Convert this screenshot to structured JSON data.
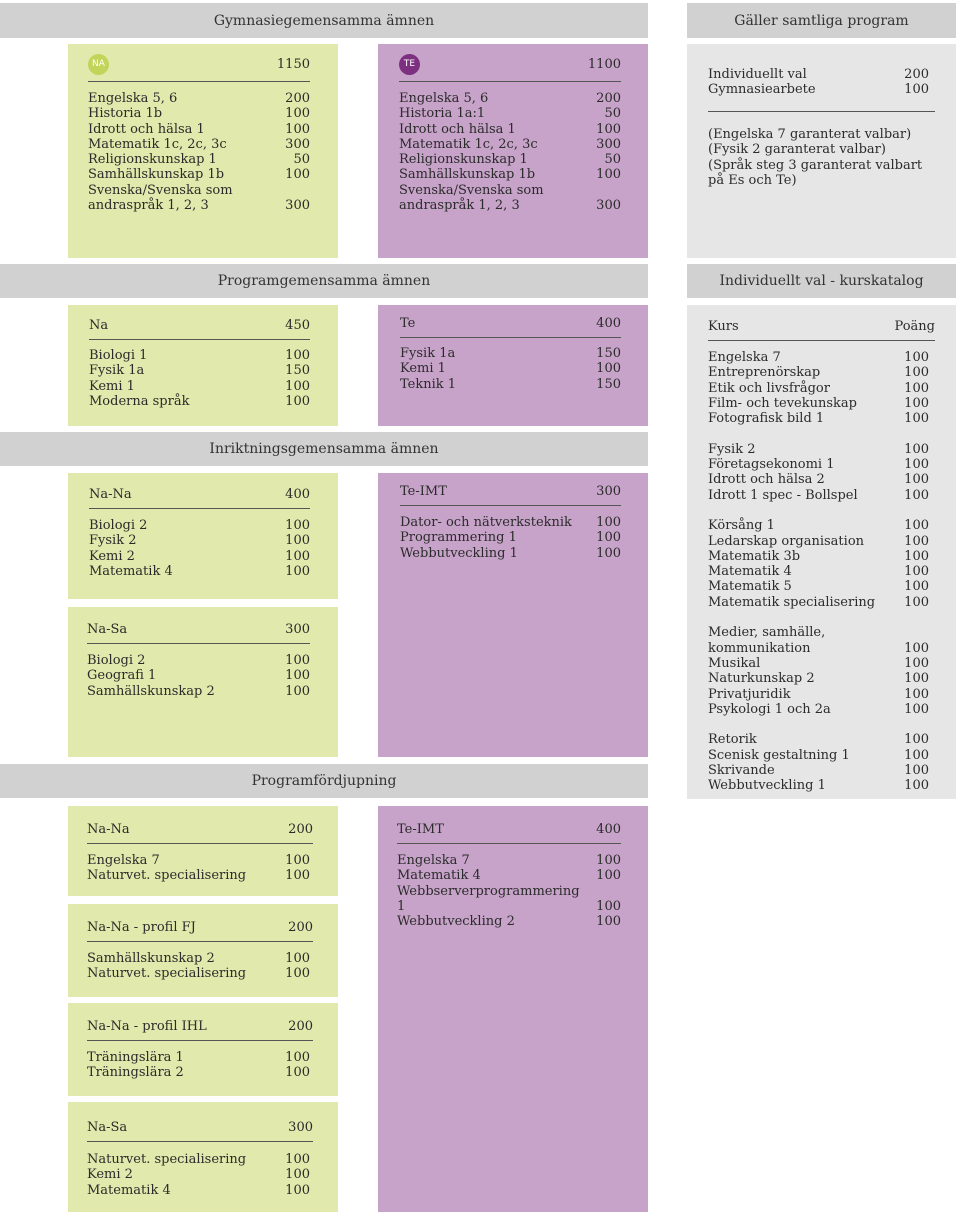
{
  "headings": {
    "gymnasie": "Gymnasiegemensamma ämnen",
    "galler": "Gäller samtliga program",
    "programgem": "Programgemensamma ämnen",
    "individuellt": "Individuellt val - kurskatalog",
    "inriktning": "Inriktningsgemensamma ämnen",
    "fordjupning": "Programfördjupning"
  },
  "gym_na": {
    "badge": "NA",
    "total": "1150",
    "rows": [
      {
        "n": "Engelska 5, 6",
        "v": "200"
      },
      {
        "n": "Historia 1b",
        "v": "100"
      },
      {
        "n": "Idrott och hälsa 1",
        "v": "100"
      },
      {
        "n": "Matematik 1c, 2c, 3c",
        "v": "300"
      },
      {
        "n": "Religionskunskap 1",
        "v": "50"
      },
      {
        "n": "Samhällskunskap 1b",
        "v": "100"
      },
      {
        "n": "Svenska/Svenska som",
        "v": ""
      },
      {
        "n": "andraspråk 1, 2, 3",
        "v": "300"
      }
    ]
  },
  "gym_te": {
    "badge": "TE",
    "total": "1100",
    "rows": [
      {
        "n": "Engelska 5, 6",
        "v": "200"
      },
      {
        "n": "Historia 1a:1",
        "v": "50"
      },
      {
        "n": "Idrott och hälsa 1",
        "v": "100"
      },
      {
        "n": "Matematik 1c, 2c, 3c",
        "v": "300"
      },
      {
        "n": "Religionskunskap 1",
        "v": "50"
      },
      {
        "n": "Samhällskunskap 1b",
        "v": "100"
      },
      {
        "n": "Svenska/Svenska som",
        "v": ""
      },
      {
        "n": "andraspråk 1, 2, 3",
        "v": "300"
      }
    ]
  },
  "galler": {
    "rows": [
      {
        "n": "Individuellt val",
        "v": "200"
      },
      {
        "n": "Gymnasiearbete",
        "v": "100"
      }
    ],
    "notes": [
      "(Engelska 7 garanterat valbar)",
      "(Fysik 2 garanterat valbar)",
      "(Språk steg 3 garanterat valbart",
      "på Es och Te)"
    ]
  },
  "prog_na": {
    "title": "Na",
    "total": "450",
    "rows": [
      {
        "n": "Biologi 1",
        "v": "100"
      },
      {
        "n": "Fysik 1a",
        "v": "150"
      },
      {
        "n": "Kemi 1",
        "v": "100"
      },
      {
        "n": "Moderna språk",
        "v": "100"
      }
    ]
  },
  "prog_te": {
    "title": "Te",
    "total": "400",
    "rows": [
      {
        "n": "Fysik 1a",
        "v": "150"
      },
      {
        "n": "Kemi 1",
        "v": "100"
      },
      {
        "n": "Teknik 1",
        "v": "150"
      }
    ]
  },
  "inr_nana": {
    "title": "Na-Na",
    "total": "400",
    "rows": [
      {
        "n": "Biologi 2",
        "v": "100"
      },
      {
        "n": "Fysik 2",
        "v": "100"
      },
      {
        "n": "Kemi 2",
        "v": "100"
      },
      {
        "n": "Matematik 4",
        "v": "100"
      }
    ]
  },
  "inr_nasa": {
    "title": "Na-Sa",
    "total": "300",
    "rows": [
      {
        "n": "Biologi 2",
        "v": "100"
      },
      {
        "n": "Geografi 1",
        "v": "100"
      },
      {
        "n": "Samhällskunskap 2",
        "v": "100"
      }
    ]
  },
  "inr_teimt": {
    "title": "Te-IMT",
    "total": "300",
    "rows": [
      {
        "n": "Dator- och nätverksteknik",
        "v": "100"
      },
      {
        "n": "Programmering 1",
        "v": "100"
      },
      {
        "n": "Webbutveckling 1",
        "v": "100"
      }
    ]
  },
  "katalog": {
    "col_kurs": "Kurs",
    "col_poang": "Poäng",
    "groups": [
      [
        {
          "n": "Engelska 7",
          "v": "100"
        },
        {
          "n": "Entreprenörskap",
          "v": "100"
        },
        {
          "n": "Etik och livsfrågor",
          "v": "100"
        },
        {
          "n": "Film- och tevekunskap",
          "v": "100"
        },
        {
          "n": "Fotografisk bild 1",
          "v": "100"
        }
      ],
      [
        {
          "n": "Fysik 2",
          "v": "100"
        },
        {
          "n": "Företagsekonomi 1",
          "v": "100"
        },
        {
          "n": "Idrott och hälsa 2",
          "v": "100"
        },
        {
          "n": "Idrott 1 spec - Bollspel",
          "v": "100"
        }
      ],
      [
        {
          "n": "Körsång 1",
          "v": "100"
        },
        {
          "n": "Ledarskap organisation",
          "v": "100"
        },
        {
          "n": "Matematik 3b",
          "v": "100"
        },
        {
          "n": "Matematik 4",
          "v": "100"
        },
        {
          "n": "Matematik 5",
          "v": "100"
        },
        {
          "n": "Matematik specialisering",
          "v": "100"
        }
      ],
      [
        {
          "n": "Medier, samhälle,",
          "v": ""
        },
        {
          "n": "kommunikation",
          "v": "100"
        },
        {
          "n": "Musikal",
          "v": "100"
        },
        {
          "n": "Naturkunskap 2",
          "v": "100"
        },
        {
          "n": "Privatjuridik",
          "v": "100"
        },
        {
          "n": "Psykologi 1 och 2a",
          "v": "100"
        }
      ],
      [
        {
          "n": "Retorik",
          "v": "100"
        },
        {
          "n": "Scenisk gestaltning 1",
          "v": "100"
        },
        {
          "n": "Skrivande",
          "v": "100"
        },
        {
          "n": "Webbutveckling 1",
          "v": "100"
        }
      ]
    ]
  },
  "ford_nana": {
    "title": "Na-Na",
    "total": "200",
    "rows": [
      {
        "n": "Engelska 7",
        "v": "100"
      },
      {
        "n": "Naturvet. specialisering",
        "v": "100"
      }
    ]
  },
  "ford_fj": {
    "title": "Na-Na - profil FJ",
    "total": "200",
    "rows": [
      {
        "n": "Samhällskunskap 2",
        "v": "100"
      },
      {
        "n": "Naturvet. specialisering",
        "v": "100"
      }
    ]
  },
  "ford_ihl": {
    "title": "Na-Na - profil IHL",
    "total": "200",
    "rows": [
      {
        "n": "Träningslära 1",
        "v": "100"
      },
      {
        "n": "Träningslära 2",
        "v": "100"
      }
    ]
  },
  "ford_nasa": {
    "title": "Na-Sa",
    "total": "300",
    "rows": [
      {
        "n": "Naturvet. specialisering",
        "v": "100"
      },
      {
        "n": "Kemi 2",
        "v": "100"
      },
      {
        "n": "Matematik 4",
        "v": "100"
      }
    ]
  },
  "ford_teimt": {
    "title": "Te-IMT",
    "total": "400",
    "rows": [
      {
        "n": "Engelska 7",
        "v": "100"
      },
      {
        "n": "Matematik 4",
        "v": "100"
      },
      {
        "n": "Webbserverprogrammering 1",
        "v": "100"
      },
      {
        "n": "Webbutveckling 2",
        "v": "100"
      }
    ]
  }
}
